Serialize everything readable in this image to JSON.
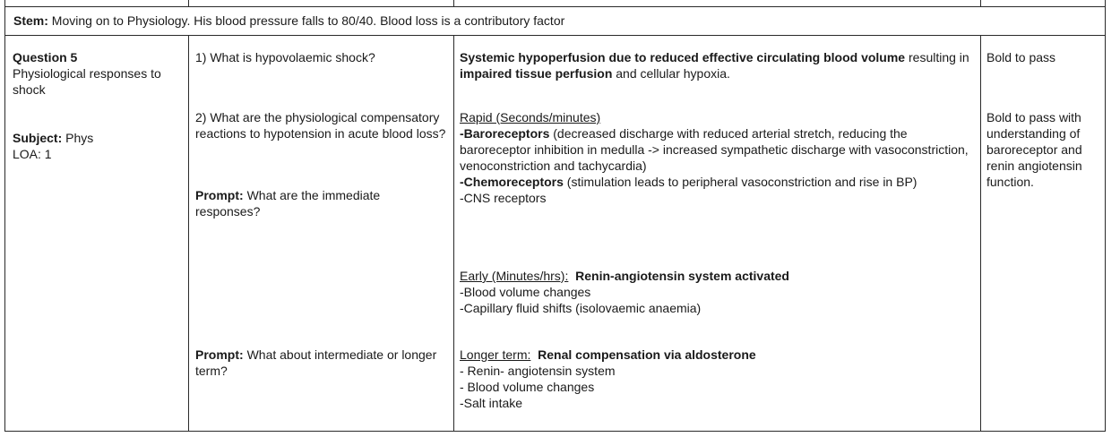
{
  "stem": {
    "label": "Stem:",
    "text": "Moving on to Physiology. His blood pressure falls to 80/40. Blood loss is a contributory factor"
  },
  "question": {
    "title": "Question 5",
    "topic": "Physiological responses to shock",
    "subject_label": "Subject:",
    "subject_value": "Phys",
    "loa": "LOA: 1"
  },
  "prompts": {
    "q1": "1) What is hypovolaemic shock?",
    "q2": "2) What are the physiological compensatory reactions to hypotension in acute blood loss?",
    "prompt_label": "Prompt:",
    "prompt1": "What are the immediate responses?",
    "prompt2": "What about intermediate or longer term?"
  },
  "answers": {
    "def_bold1": "Systemic hypoperfusion due to reduced effective circulating blood volume",
    "def_text1": "resulting in ",
    "def_bold2": "impaired tissue perfusion",
    "def_text2": " and cellular hypoxia.",
    "rapid_heading": "Rapid (Seconds/minutes)",
    "baro_bold": "-Baroreceptors",
    "baro_text": " (decreased discharge with reduced arterial stretch, reducing the baroreceptor inhibition in medulla -> increased sympathetic discharge with vasoconstriction, venoconstriction and tachycardia)",
    "chemo_bold": "-Chemoreceptors",
    "chemo_text": " (stimulation leads to peripheral vasoconstriction and rise in BP)",
    "cns": "-CNS receptors",
    "early_heading": "Early (Minutes/hrs):",
    "early_bold": "Renin-angiotensin system activated",
    "early_item1": "-Blood volume changes",
    "early_item2": "-Capillary fluid shifts (isolovaemic anaemia)",
    "longer_heading": "Longer term:",
    "longer_bold": "Renal compensation via aldosterone",
    "longer_item1": "- Renin- angiotensin system",
    "longer_item2": "- Blood volume changes",
    "longer_item3": "-Salt intake"
  },
  "marking": {
    "m1": "Bold to pass",
    "m2": "Bold to pass with understanding of baroreceptor and renin angiotensin function."
  }
}
